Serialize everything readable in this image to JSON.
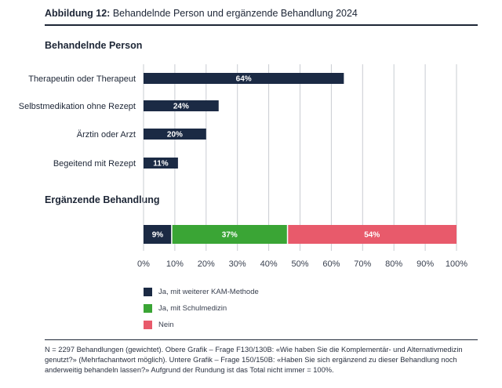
{
  "figure": {
    "label": "Abbildung 12:",
    "title": "Behandelnde Person und ergänzende Behandlung 2024"
  },
  "footnote": "N = 2297 Behandlungen (gewichtet). Obere Grafik – Frage F130/130B: «Wie haben Sie die Komplementär- und Alternativmedizin genutzt?» (Mehrfachantwort möglich). Untere Grafik – Frage 150/150B: «Haben Sie sich ergänzend zu dieser Behandlung noch anderweitig behandeln lassen?» Aufgrund der Rundung ist das Total nicht immer = 100%.",
  "colors": {
    "navy": "#1b2a44",
    "green": "#3aa535",
    "red": "#e85a6b",
    "grid": "#c9ccd2"
  },
  "chart_data": [
    {
      "type": "bar",
      "orientation": "horizontal",
      "title": "Behandelnde Person",
      "categories": [
        "Therapeutin oder Therapeut",
        "Selbstmedikation ohne Rezept",
        "Ärztin oder Arzt",
        "Begeitend mit Rezept"
      ],
      "values": [
        64,
        24,
        20,
        11
      ],
      "value_labels": [
        "64%",
        "24%",
        "20%",
        "11%"
      ],
      "xlim": [
        0,
        100
      ],
      "grid": true
    },
    {
      "type": "bar",
      "orientation": "horizontal",
      "stacked": true,
      "title": "Ergänzende Behandlung",
      "series": [
        {
          "name": "Ja, mit weiterer KAM-Methode",
          "values": [
            9
          ],
          "label": "9%",
          "color": "#1b2a44"
        },
        {
          "name": "Ja, mit Schulmedizin",
          "values": [
            37
          ],
          "label": "37%",
          "color": "#3aa535"
        },
        {
          "name": "Nein",
          "values": [
            54
          ],
          "label": "54%",
          "color": "#e85a6b"
        }
      ],
      "xlim": [
        0,
        100
      ],
      "xticks": [
        0,
        10,
        20,
        30,
        40,
        50,
        60,
        70,
        80,
        90,
        100
      ],
      "xtick_labels": [
        "0%",
        "10%",
        "20%",
        "30%",
        "40%",
        "50%",
        "60%",
        "70%",
        "80%",
        "90%",
        "100%"
      ],
      "grid": true,
      "legend_position": "below"
    }
  ]
}
